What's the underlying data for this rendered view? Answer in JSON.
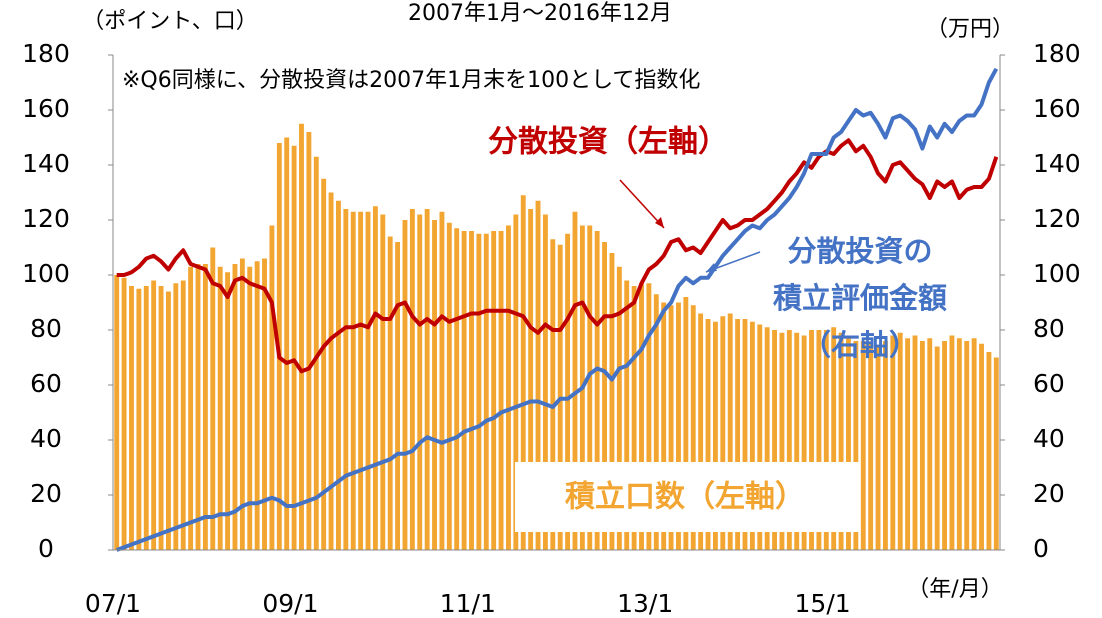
{
  "chart_data": {
    "type": "bar-line",
    "title": "2007年1月～2016年12月",
    "y_label": "（ポイント、口）",
    "y2_label": "（万円）",
    "x_label": "（年/月）",
    "note": "※Q6同様に、分散投資は2007年1月末を100として指数化",
    "categories": [
      "07/1",
      null,
      null,
      null,
      null,
      null,
      null,
      null,
      null,
      null,
      null,
      null,
      null,
      null,
      null,
      null,
      null,
      null,
      null,
      null,
      null,
      null,
      null,
      null,
      "09/1",
      null,
      null,
      null,
      null,
      null,
      null,
      null,
      null,
      null,
      null,
      null,
      null,
      null,
      null,
      null,
      null,
      null,
      null,
      null,
      null,
      null,
      null,
      null,
      "11/1",
      null,
      null,
      null,
      null,
      null,
      null,
      null,
      null,
      null,
      null,
      null,
      null,
      null,
      null,
      null,
      null,
      null,
      null,
      null,
      null,
      null,
      null,
      null,
      "13/1",
      null,
      null,
      null,
      null,
      null,
      null,
      null,
      null,
      null,
      null,
      null,
      null,
      null,
      null,
      null,
      null,
      null,
      null,
      null,
      null,
      null,
      null,
      null,
      "15/1",
      null,
      null,
      null,
      null,
      null,
      null,
      null,
      null,
      null,
      null,
      null,
      null,
      null,
      null,
      null,
      null,
      null,
      null,
      null,
      null,
      null,
      null,
      null
    ],
    "series": [
      {
        "name": "積立口数（左軸）",
        "kind": "bar",
        "axis": "y",
        "color": "#f2a531",
        "values": [
          100,
          99,
          96,
          95,
          96,
          98,
          96,
          94,
          97,
          98,
          103,
          104,
          104,
          110,
          103,
          101,
          104,
          106,
          103,
          105,
          106,
          118,
          148,
          150,
          147,
          155,
          152,
          143,
          135,
          130,
          127,
          124,
          123,
          123,
          123,
          125,
          122,
          114,
          112,
          120,
          124,
          122,
          124,
          120,
          123,
          119,
          117,
          116,
          116,
          115,
          115,
          116,
          116,
          118,
          122,
          129,
          124,
          127,
          122,
          113,
          111,
          115,
          123,
          118,
          118,
          116,
          112,
          108,
          103,
          98,
          96,
          97,
          97,
          93,
          90,
          89,
          90,
          92,
          89,
          86,
          84,
          83,
          85,
          86,
          84,
          84,
          83,
          82,
          81,
          80,
          79,
          80,
          79,
          78,
          80,
          80,
          80,
          81,
          79,
          77,
          76,
          76,
          75,
          74,
          76,
          78,
          79,
          77,
          78,
          76,
          77,
          74,
          76,
          78,
          77,
          76,
          77,
          75,
          72,
          70
        ]
      },
      {
        "name": "分散投資（左軸）",
        "kind": "line",
        "axis": "y",
        "color": "#c00000",
        "values": [
          100,
          100,
          101,
          103,
          106,
          107,
          105,
          102,
          106,
          109,
          104,
          103,
          102,
          97,
          96,
          92,
          98,
          99,
          97,
          96,
          95,
          90,
          70,
          68,
          69,
          65,
          66,
          70,
          74,
          77,
          79,
          81,
          81,
          82,
          81,
          86,
          84,
          84,
          89,
          90,
          85,
          82,
          84,
          82,
          85,
          83,
          84,
          85,
          86,
          86,
          87,
          87,
          87,
          87,
          86,
          85,
          81,
          79,
          82,
          80,
          80,
          84,
          89,
          90,
          85,
          82,
          85,
          85,
          86,
          88,
          90,
          97,
          102,
          104,
          107,
          112,
          113,
          109,
          110,
          108,
          112,
          116,
          120,
          117,
          118,
          120,
          120,
          122,
          124,
          127,
          130,
          134,
          137,
          141,
          139,
          143,
          145,
          144,
          147,
          149,
          145,
          147,
          143,
          137,
          134,
          140,
          141,
          138,
          135,
          133,
          128,
          134,
          132,
          134,
          128,
          131,
          132,
          132,
          135,
          143
        ]
      },
      {
        "name": [
          "分散投資の",
          "積立評価金額",
          "（右軸）"
        ],
        "kind": "line",
        "axis": "y2",
        "color": "#4472c4",
        "values": [
          0,
          1,
          2,
          3,
          4,
          5,
          6,
          7,
          8,
          9,
          10,
          11,
          12,
          12,
          13,
          13,
          14,
          16,
          17,
          17,
          18,
          19,
          18,
          16,
          16,
          17,
          18,
          19,
          21,
          23,
          25,
          27,
          28,
          29,
          30,
          31,
          32,
          33,
          35,
          35,
          36,
          39,
          41,
          40,
          39,
          40,
          41,
          43,
          44,
          45,
          47,
          48,
          50,
          51,
          52,
          53,
          54,
          54,
          53,
          52,
          55,
          55,
          57,
          59,
          64,
          66,
          65,
          62,
          66,
          67,
          70,
          73,
          78,
          82,
          87,
          90,
          96,
          99,
          97,
          99,
          99,
          103,
          107,
          110,
          113,
          116,
          118,
          117,
          120,
          122,
          125,
          128,
          132,
          137,
          144,
          144,
          144,
          150,
          152,
          156,
          160,
          158,
          159,
          155,
          150,
          157,
          158,
          156,
          153,
          146,
          154,
          150,
          155,
          152,
          156,
          158,
          158,
          162,
          170,
          175
        ]
      }
    ],
    "ylim": [
      0,
      180
    ],
    "yticks": [
      0,
      20,
      40,
      60,
      80,
      100,
      120,
      140,
      160,
      180
    ],
    "y2lim": [
      0,
      180
    ],
    "y2ticks": [
      0,
      20,
      40,
      60,
      80,
      100,
      120,
      140,
      160,
      180
    ]
  }
}
